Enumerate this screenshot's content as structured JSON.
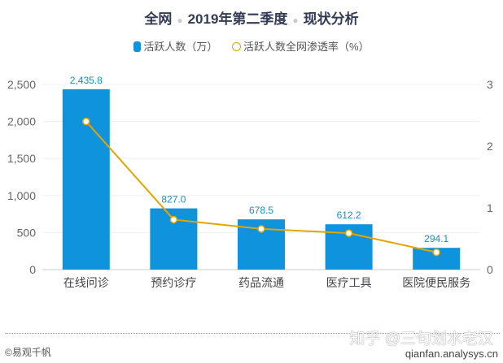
{
  "title": {
    "part1": "全网",
    "part2": "2019年第二季度",
    "part3": "现状分析"
  },
  "footer": {
    "source": "©易观千帆",
    "url": "qianfan.analysys.cn",
    "watermark": "知乎 @三句划水老汉"
  },
  "chart_data": {
    "type": "bar+line",
    "categories": [
      "在线问诊",
      "预约诊疗",
      "药品流通",
      "医疗工具",
      "医院便民服务"
    ],
    "series": [
      {
        "name": "活跃人数（万）",
        "type": "bar",
        "axis": "left",
        "color": "#0f93dc",
        "values": [
          2435.8,
          827.0,
          678.5,
          612.2,
          294.1
        ],
        "labels": [
          "2,435.8",
          "827.0",
          "678.5",
          "612.2",
          "294.1"
        ]
      },
      {
        "name": "活跃人数全网渗透率（%）",
        "type": "line",
        "axis": "right",
        "color": "#e6a400",
        "values": [
          2.4,
          0.81,
          0.66,
          0.59,
          0.28
        ]
      }
    ],
    "y_left": {
      "range": [
        0,
        2500
      ],
      "ticks": [
        "0",
        "500",
        "1,000",
        "1,500",
        "2,000",
        "2,500"
      ]
    },
    "y_right": {
      "range": [
        0,
        3
      ],
      "ticks": [
        "0",
        "1",
        "2",
        "3"
      ]
    },
    "grid": true,
    "legend": "top-center"
  }
}
